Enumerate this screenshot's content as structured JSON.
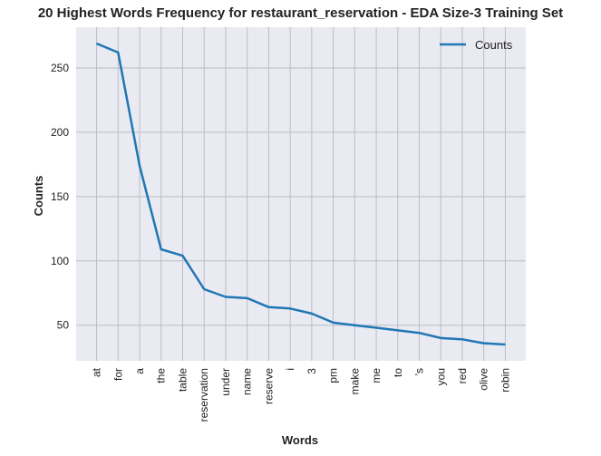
{
  "chart_data": {
    "type": "line",
    "title": "20 Highest Words Frequency for restaurant_reservation - EDA Size-3 Training Set",
    "xlabel": "Words",
    "ylabel": "Counts",
    "categories": [
      "at",
      "for",
      "a",
      "the",
      "table",
      "reservation",
      "under",
      "name",
      "reserve",
      "i",
      "3",
      "pm",
      "make",
      "me",
      "to",
      "'s",
      "you",
      "red",
      "olive",
      "robin"
    ],
    "series": [
      {
        "name": "Counts",
        "color": "#1f77b4",
        "values": [
          269,
          262,
          174,
          109,
          104,
          78,
          72,
          71,
          64,
          63,
          59,
          52,
          50,
          48,
          46,
          44,
          40,
          39,
          36,
          35
        ]
      }
    ],
    "yticks": [
      50,
      100,
      150,
      200,
      250
    ],
    "ylim": [
      22.3,
      281.7
    ],
    "grid": true,
    "legend_position": "top-right",
    "background": "#eaeaf2",
    "grid_color": "#bcbcc4"
  }
}
